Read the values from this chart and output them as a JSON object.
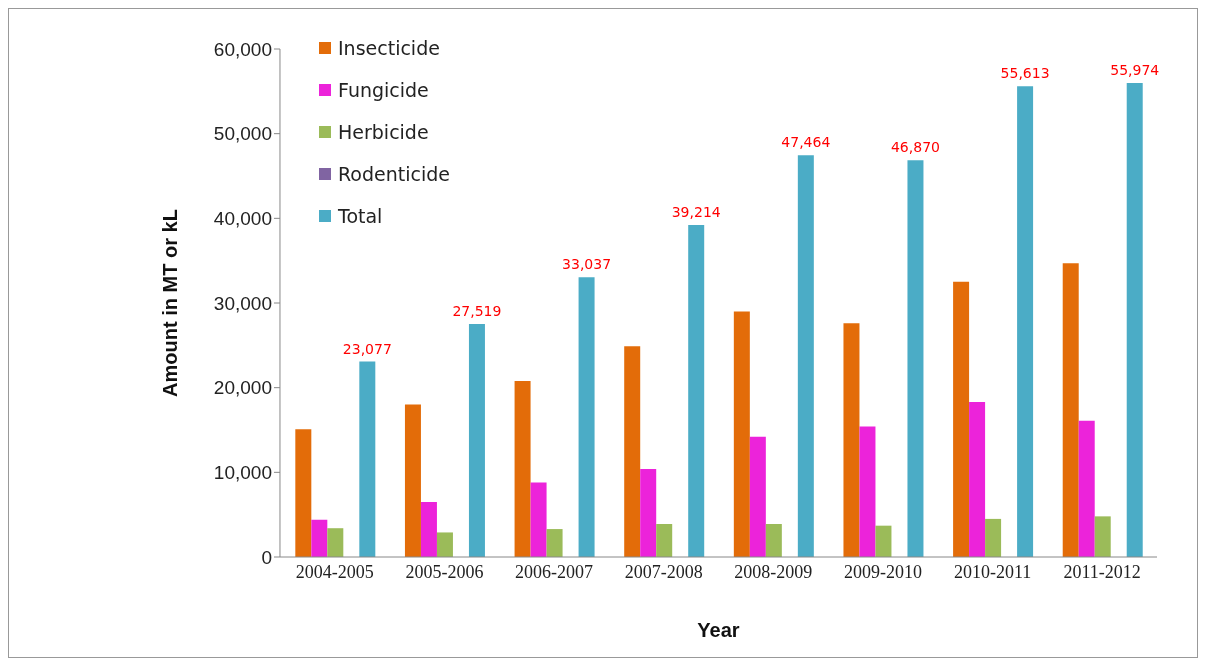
{
  "chart_data": {
    "type": "bar",
    "xlabel": "Year",
    "ylabel": "Amount in MT or kL",
    "categories": [
      "2004-2005",
      "2005-2006",
      "2006-2007",
      "2007-2008",
      "2008-2009",
      "2009-2010",
      "2010-2011",
      "2011-2012"
    ],
    "series": [
      {
        "name": "Insecticide",
        "color": "#e36c09",
        "values": [
          15100,
          18000,
          20800,
          24900,
          29000,
          27600,
          32500,
          34700
        ]
      },
      {
        "name": "Fungicide",
        "color": "#ec23da",
        "values": [
          4400,
          6500,
          8800,
          10400,
          14200,
          15400,
          18300,
          16100
        ]
      },
      {
        "name": "Herbicide",
        "color": "#9bbb59",
        "values": [
          3400,
          2900,
          3300,
          3900,
          3900,
          3700,
          4500,
          4800
        ]
      },
      {
        "name": "Rodenticide",
        "color": "#8064a2",
        "values": [
          0,
          0,
          0,
          0,
          0,
          0,
          0,
          0
        ]
      },
      {
        "name": "Total",
        "color": "#4bacc6",
        "values": [
          23077,
          27519,
          33037,
          39214,
          47464,
          46870,
          55613,
          55974
        ],
        "value_labels": [
          "23,077",
          "27,519",
          "33,037",
          "39,214",
          "47,464",
          "46,870",
          "55,613",
          "55,974"
        ]
      }
    ],
    "ylim": [
      0,
      60000
    ],
    "yticks": [
      {
        "value": 0,
        "label": "0"
      },
      {
        "value": 10000,
        "label": "10,000"
      },
      {
        "value": 20000,
        "label": "20,000"
      },
      {
        "value": 30000,
        "label": "30,000"
      },
      {
        "value": 40000,
        "label": "40,000"
      },
      {
        "value": 50000,
        "label": "50,000"
      },
      {
        "value": 60000,
        "label": "60,000"
      }
    ],
    "grid": false,
    "legend": "top left"
  }
}
